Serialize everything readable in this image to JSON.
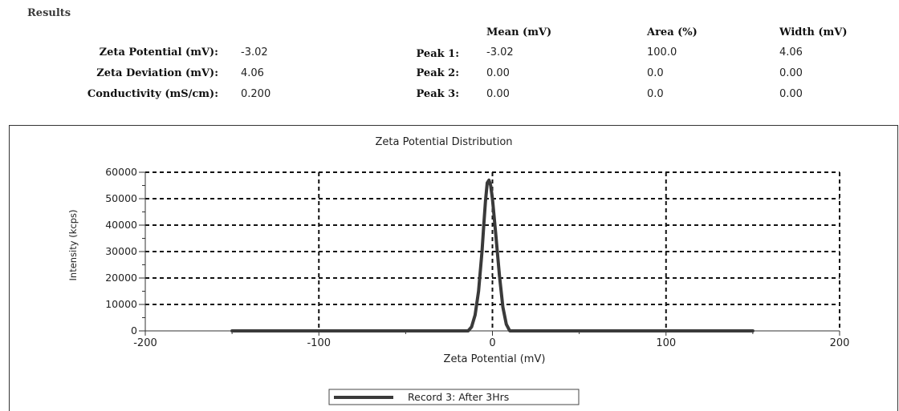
{
  "results": {
    "title": "Results",
    "summary": [
      {
        "label": "Zeta Potential (mV):",
        "value": "-3.02"
      },
      {
        "label": "Zeta Deviation (mV):",
        "value": "4.06"
      },
      {
        "label": "Conductivity (mS/cm):",
        "value": "0.200"
      }
    ],
    "peak_headers": {
      "mean": "Mean (mV)",
      "area": "Area (%)",
      "width": "Width (mV)"
    },
    "peaks": [
      {
        "label": "Peak 1:",
        "mean": "-3.02",
        "area": "100.0",
        "width": "4.06"
      },
      {
        "label": "Peak 2:",
        "mean": "0.00",
        "area": "0.0",
        "width": "0.00"
      },
      {
        "label": "Peak 3:",
        "mean": "0.00",
        "area": "0.0",
        "width": "0.00"
      }
    ]
  },
  "chart_data": {
    "type": "line",
    "title": "Zeta Potential Distribution",
    "xlabel": "Zeta Potential (mV)",
    "ylabel": "Intensity (kcps)",
    "xlim": [
      -200,
      200
    ],
    "ylim": [
      0,
      60000
    ],
    "xticks": [
      "-200",
      "-100",
      "0",
      "100",
      "200"
    ],
    "yticks": [
      "0",
      "10000",
      "20000",
      "30000",
      "40000",
      "50000",
      "60000"
    ],
    "grid": true,
    "legend_position": "bottom-center",
    "series": [
      {
        "name": "Record 3: After 3Hrs",
        "color": "#3a3a3a",
        "x": [
          -150,
          -20,
          -14,
          -12,
          -10,
          -8,
          -6,
          -5,
          -4,
          -3,
          -2,
          -1,
          0,
          2,
          4,
          6,
          8,
          10,
          14,
          20,
          150
        ],
        "y": [
          0,
          0,
          0,
          1500,
          6000,
          15000,
          30000,
          40000,
          49000,
          56000,
          57000,
          55000,
          50000,
          36000,
          21000,
          9000,
          2500,
          0,
          0,
          0,
          0
        ]
      }
    ]
  }
}
